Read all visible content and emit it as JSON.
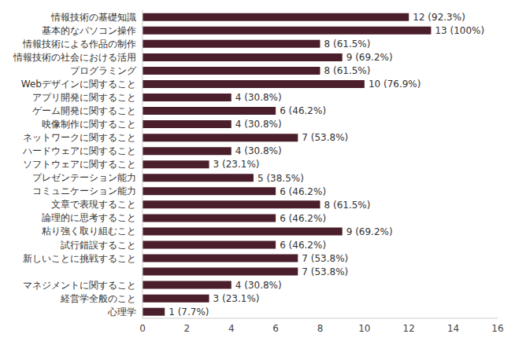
{
  "chart_data": {
    "type": "bar",
    "orientation": "horizontal",
    "categories": [
      "情報技術の基礎知識",
      "基本的なパソコン操作",
      "情報技術による作品の制作",
      "情報技術の社会における活用",
      "プログラミング",
      "Webデザインに関すること",
      "アプリ開発に関すること",
      "ゲーム開発に関すること",
      "映像制作に関すること",
      "ネットワークに関すること",
      "ハードウェアに関すること",
      "ソフトウェアに関すること",
      "プレゼンテーション能力",
      "コミュニケーション能力",
      "文章で表現すること",
      "論理的に思考すること",
      "粘り強く取り組むこと",
      "試行錯誤すること",
      "新しいことに挑戦すること",
      null,
      "マネジメントに関すること",
      "経営学全般のこと",
      "心理学"
    ],
    "values": [
      12,
      13,
      8,
      9,
      8,
      10,
      4,
      6,
      4,
      7,
      4,
      3,
      5,
      6,
      8,
      6,
      9,
      6,
      7,
      7,
      4,
      3,
      1
    ],
    "value_labels": [
      "12 (92.3%)",
      "13 (100%)",
      "8 (61.5%)",
      "9 (69.2%)",
      "8 (61.5%)",
      "10 (76.9%)",
      "4 (30.8%)",
      "6 (46.2%)",
      "4 (30.8%)",
      "7 (53.8%)",
      "4 (30.8%)",
      "3 (23.1%)",
      "5 (38.5%)",
      "6 (46.2%)",
      "8 (61.5%)",
      "6 (46.2%)",
      "9 (69.2%)",
      "6 (46.2%)",
      "7 (53.8%)",
      "7 (53.8%)",
      "4 (30.8%)",
      "3 (23.1%)",
      "1 (7.7%)"
    ],
    "color": "#4a1e2a",
    "xlim": [
      0,
      16
    ],
    "xticks": [
      0,
      2,
      4,
      6,
      8,
      10,
      12,
      14,
      16
    ],
    "grid": false,
    "data_labels": true
  }
}
